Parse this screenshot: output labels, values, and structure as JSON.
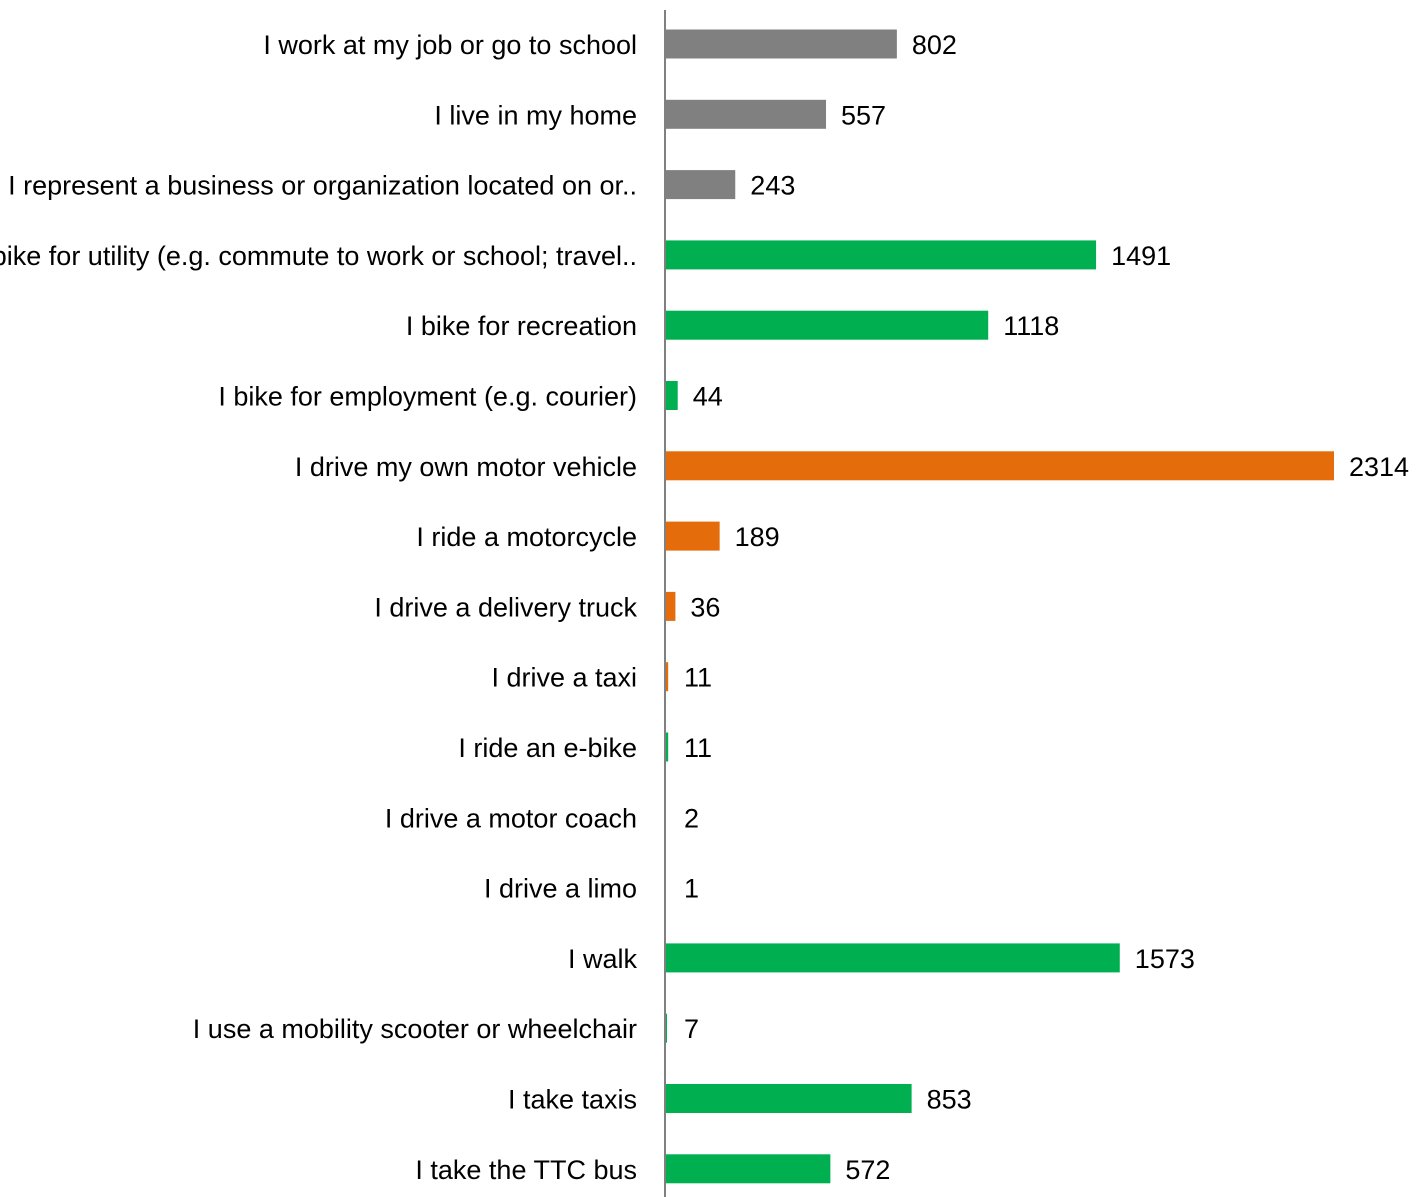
{
  "colors": {
    "gray": "#808080",
    "green": "#00B050",
    "orange": "#E46C0A",
    "axis": "#808080",
    "text": "#000000"
  },
  "chart_data": {
    "type": "bar",
    "orientation": "horizontal",
    "title": "",
    "xlabel": "",
    "ylabel": "",
    "xlim": [
      0,
      2314
    ],
    "grid": false,
    "legend": "none",
    "categories": [
      "I work at my job or go to school",
      "I live in my home",
      "I represent a business or organization located on or..",
      "I bike for utility (e.g. commute to work or school; travel..",
      "I bike for recreation",
      "I bike for employment (e.g. courier)",
      "I drive my own motor vehicle",
      "I ride a motorcycle",
      "I drive a delivery truck",
      "I drive a taxi",
      "I ride an e-bike",
      "I drive a motor coach",
      "I drive a limo",
      "I walk",
      "I use a mobility scooter or wheelchair",
      "I take taxis",
      "I take the TTC bus"
    ],
    "values": [
      802,
      557,
      243,
      1491,
      1118,
      44,
      2314,
      189,
      36,
      11,
      11,
      2,
      1,
      1573,
      7,
      853,
      572
    ],
    "bar_colors": [
      "#808080",
      "#808080",
      "#808080",
      "#00B050",
      "#00B050",
      "#00B050",
      "#E46C0A",
      "#E46C0A",
      "#E46C0A",
      "#E46C0A",
      "#00B050",
      "#00B050",
      "#00B050",
      "#00B050",
      "#00B050",
      "#00B050",
      "#00B050"
    ],
    "value_labels": [
      "802",
      "557",
      "243",
      "1491",
      "1118",
      "44",
      "2314",
      "189",
      "36",
      "11",
      "11",
      "2",
      "1",
      "1573",
      "7",
      "853",
      "572"
    ]
  }
}
